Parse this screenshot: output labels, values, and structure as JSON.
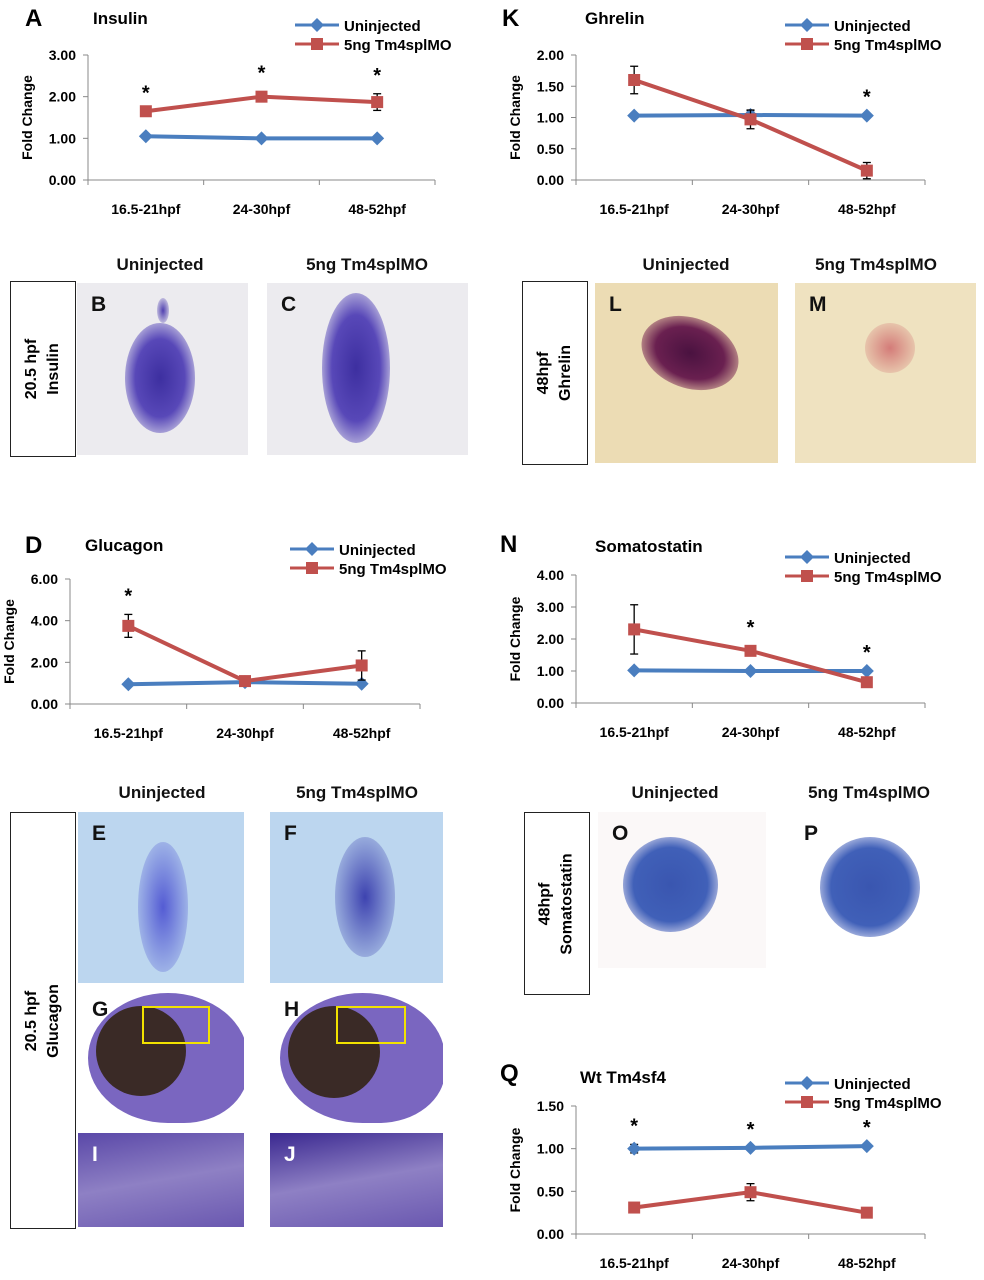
{
  "colors": {
    "uninjected": "#4a7ebf",
    "mo": "#c0504d",
    "insulin_stain": "#4a3aa8",
    "ghrelin_stain": "#5a1a4a",
    "glucagon_stain": "#2a2ab8",
    "somatostatin_stain": "#3050b0",
    "yellow_box": "#f2e200"
  },
  "chart_data": [
    {
      "id": "A",
      "type": "line",
      "letter": "A",
      "title": "Insulin",
      "ylabel": "Fold Change",
      "xlabel": "",
      "ylim": [
        0,
        3
      ],
      "yticks": [
        "0.00",
        "1.00",
        "2.00",
        "3.00"
      ],
      "categories": [
        "16.5-21hpf",
        "24-30hpf",
        "48-52hpf"
      ],
      "legend_position": "top-right",
      "series": [
        {
          "name": "Uninjected",
          "marker": "diamond",
          "values": [
            1.05,
            1.0,
            1.0
          ],
          "errors": [
            0,
            0,
            0
          ]
        },
        {
          "name": "5ng Tm4splMO",
          "marker": "square",
          "values": [
            1.65,
            2.0,
            1.87
          ],
          "errors": [
            0,
            0.12,
            0.2
          ]
        }
      ],
      "significance": [
        "*",
        "*",
        "*"
      ]
    },
    {
      "id": "K",
      "type": "line",
      "letter": "K",
      "title": "Ghrelin",
      "ylabel": "Fold Change",
      "xlabel": "",
      "ylim": [
        0,
        2
      ],
      "yticks": [
        "0.00",
        "0.50",
        "1.00",
        "1.50",
        "2.00"
      ],
      "categories": [
        "16.5-21hpf",
        "24-30hpf",
        "48-52hpf"
      ],
      "legend_position": "top-right",
      "series": [
        {
          "name": "Uninjected",
          "marker": "diamond",
          "values": [
            1.03,
            1.04,
            1.03
          ],
          "errors": [
            0,
            0.07,
            0
          ]
        },
        {
          "name": "5ng Tm4splMO",
          "marker": "square",
          "values": [
            1.6,
            0.97,
            0.15
          ],
          "errors": [
            0.22,
            0.15,
            0.13
          ]
        }
      ],
      "significance": [
        "",
        "",
        "*"
      ]
    },
    {
      "id": "D",
      "type": "line",
      "letter": "D",
      "title": "Glucagon",
      "ylabel": "Fold Change",
      "xlabel": "",
      "ylim": [
        0,
        6
      ],
      "yticks": [
        "0.00",
        "2.00",
        "4.00",
        "6.00"
      ],
      "categories": [
        "16.5-21hpf",
        "24-30hpf",
        "48-52hpf"
      ],
      "legend_position": "top-right",
      "series": [
        {
          "name": "Uninjected",
          "marker": "diamond",
          "values": [
            0.95,
            1.05,
            0.97
          ],
          "errors": [
            0,
            0,
            0
          ]
        },
        {
          "name": "5ng Tm4splMO",
          "marker": "square",
          "values": [
            3.75,
            1.1,
            1.85
          ],
          "errors": [
            0.55,
            0.2,
            0.7
          ]
        }
      ],
      "significance": [
        "*",
        "",
        ""
      ]
    },
    {
      "id": "N",
      "type": "line",
      "letter": "N",
      "title": "Somatostatin",
      "ylabel": "Fold Change",
      "xlabel": "",
      "ylim": [
        0,
        4
      ],
      "yticks": [
        "0.00",
        "1.00",
        "2.00",
        "3.00",
        "4.00"
      ],
      "categories": [
        "16.5-21hpf",
        "24-30hpf",
        "48-52hpf"
      ],
      "legend_position": "top-right",
      "series": [
        {
          "name": "Uninjected",
          "marker": "diamond",
          "values": [
            1.02,
            1.0,
            1.0
          ],
          "errors": [
            0,
            0,
            0
          ]
        },
        {
          "name": "5ng Tm4splMO",
          "marker": "square",
          "values": [
            2.3,
            1.63,
            0.65
          ],
          "errors": [
            0.77,
            0.15,
            0
          ]
        }
      ],
      "significance": [
        "",
        "*",
        "*"
      ]
    },
    {
      "id": "Q",
      "type": "line",
      "letter": "Q",
      "title": "Wt Tm4sf4",
      "ylabel": "Fold Change",
      "xlabel": "",
      "ylim": [
        0,
        1.5
      ],
      "yticks": [
        "0.00",
        "0.50",
        "1.00",
        "1.50"
      ],
      "categories": [
        "16.5-21hpf",
        "24-30hpf",
        "48-52hpf"
      ],
      "legend_position": "top-right",
      "series": [
        {
          "name": "Uninjected",
          "marker": "diamond",
          "values": [
            1.0,
            1.01,
            1.03
          ],
          "errors": [
            0.05,
            0,
            0
          ]
        },
        {
          "name": "5ng Tm4splMO",
          "marker": "square",
          "values": [
            0.31,
            0.49,
            0.25
          ],
          "errors": [
            0,
            0.1,
            0.05
          ]
        }
      ],
      "significance": [
        "*",
        "*",
        "*"
      ]
    }
  ],
  "headers": {
    "uninjected": "Uninjected",
    "mo": "5ng Tm4splMO"
  },
  "row_labels": {
    "insulin": [
      "20.5 hpf",
      "Insulin"
    ],
    "ghrelin": [
      "48hpf",
      "Ghrelin"
    ],
    "glucagon": [
      "20.5 hpf",
      "Glucagon"
    ],
    "somatostatin": [
      "48hpf",
      "Somatostatin"
    ]
  },
  "panel_letters": {
    "B": "B",
    "C": "C",
    "E": "E",
    "F": "F",
    "G": "G",
    "H": "H",
    "I": "I",
    "J": "J",
    "L": "L",
    "M": "M",
    "O": "O",
    "P": "P"
  }
}
